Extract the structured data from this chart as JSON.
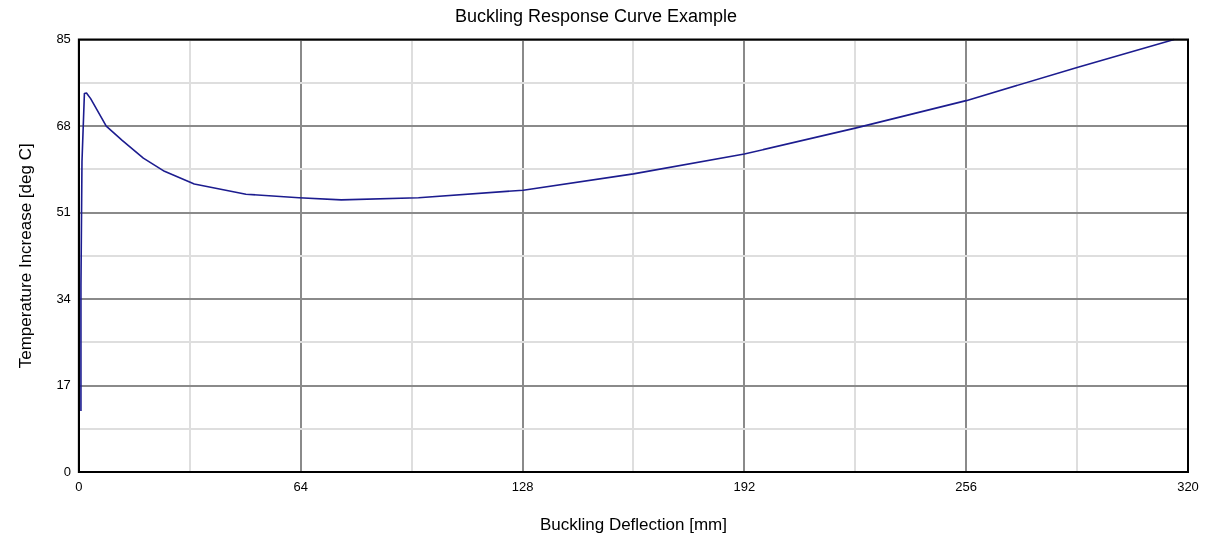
{
  "chart_data": {
    "type": "line",
    "title": "Buckling Response Curve Example",
    "xlabel": "Buckling Deflection [mm]",
    "ylabel": "Temperature Increase [deg C]",
    "x": [
      0.6,
      0.6,
      0.9,
      1.6,
      2.2,
      3.4,
      7.9,
      12.5,
      18.6,
      24.7,
      33.3,
      48.2,
      63.5,
      75.7,
      98,
      128.2,
      160,
      192,
      224,
      256,
      288,
      316
    ],
    "series": [
      {
        "color": "#1c1c8f",
        "values": [
          12,
          36.6,
          61,
          74.4,
          74.5,
          73.4,
          68,
          65.2,
          61.7,
          59.1,
          56.6,
          54.6,
          53.9,
          53.5,
          53.9,
          55.4,
          58.6,
          62.5,
          67.6,
          73,
          79.5,
          85
        ]
      }
    ],
    "xlim": [
      0,
      320
    ],
    "ylim": [
      0,
      85
    ],
    "xticks": [
      0,
      {
        "value": 32,
        "label": null
      },
      64,
      {
        "value": 96,
        "label": null
      },
      128,
      {
        "value": 160,
        "label": null
      },
      192,
      {
        "value": 224,
        "label": null
      },
      256,
      {
        "value": 288,
        "label": null
      },
      320
    ],
    "yticks": [
      0,
      {
        "value": 8.5,
        "label": null
      },
      17,
      {
        "value": 25.5,
        "label": null
      },
      34,
      {
        "value": 42.5,
        "label": null
      },
      51,
      {
        "value": 59.5,
        "label": null
      },
      68,
      {
        "value": 76.5,
        "label": null
      },
      85
    ],
    "grid": true,
    "legend": false,
    "marker": "none",
    "line_style": "solid"
  }
}
